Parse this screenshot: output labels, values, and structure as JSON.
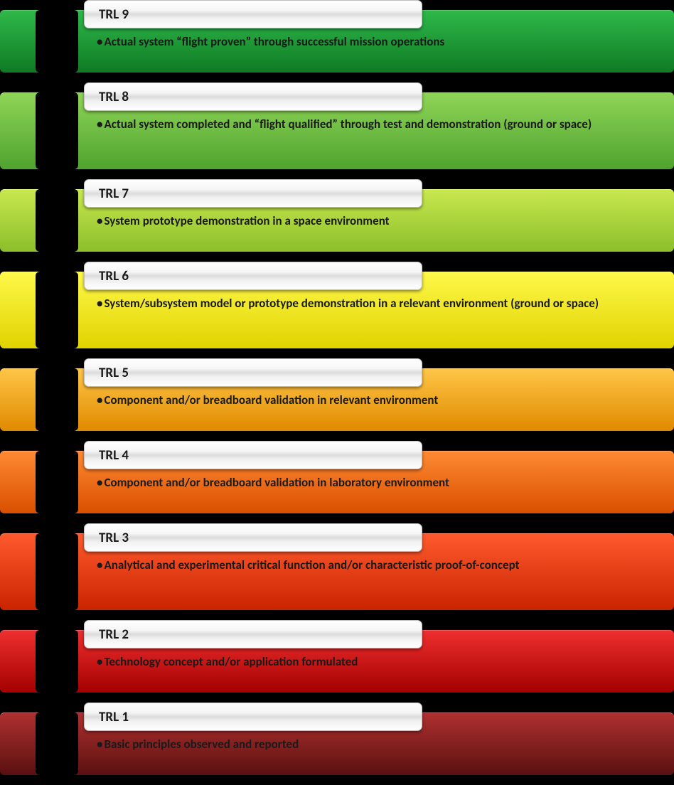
{
  "diagram": {
    "type": "infographic",
    "background_color": "#000000",
    "levels": [
      {
        "title": "TRL 9",
        "desc": "Actual system “flight proven” through successful mission operations",
        "bg_gradient_top": "#2fb94a",
        "bg_gradient_bottom": "#0f7a24",
        "tall": false
      },
      {
        "title": "TRL 8",
        "desc": "Actual system completed and “flight qualified” through test and demonstration (ground or space)",
        "bg_gradient_top": "#8fd557",
        "bg_gradient_bottom": "#4fa32f",
        "tall": true
      },
      {
        "title": "TRL 7",
        "desc": "System prototype demonstration in a space environment",
        "bg_gradient_top": "#c9e84f",
        "bg_gradient_bottom": "#8bbf2a",
        "tall": false
      },
      {
        "title": "TRL 6",
        "desc": "System/subsystem model or prototype demonstration in a relevant environment (ground or space)",
        "bg_gradient_top": "#fff94a",
        "bg_gradient_bottom": "#e0d300",
        "tall": true
      },
      {
        "title": "TRL 5",
        "desc": "Component and/or breadboard validation in relevant environment",
        "bg_gradient_top": "#ffc647",
        "bg_gradient_bottom": "#e08a00",
        "tall": false
      },
      {
        "title": "TRL 4",
        "desc": "Component and/or breadboard validation in laboratory environment",
        "bg_gradient_top": "#ff8a33",
        "bg_gradient_bottom": "#d94f00",
        "tall": false
      },
      {
        "title": "TRL 3",
        "desc": "Analytical and experimental critical function and/or characteristic proof-of-concept",
        "bg_gradient_top": "#ff5a2e",
        "bg_gradient_bottom": "#c92400",
        "tall": true
      },
      {
        "title": "TRL 2",
        "desc": "Technology concept and/or application formulated",
        "bg_gradient_top": "#ef2f2f",
        "bg_gradient_bottom": "#a30000",
        "tall": false
      },
      {
        "title": "TRL 1",
        "desc": "Basic principles observed and reported",
        "bg_gradient_top": "#b03030",
        "bg_gradient_bottom": "#5a1010",
        "tall": false
      }
    ]
  }
}
